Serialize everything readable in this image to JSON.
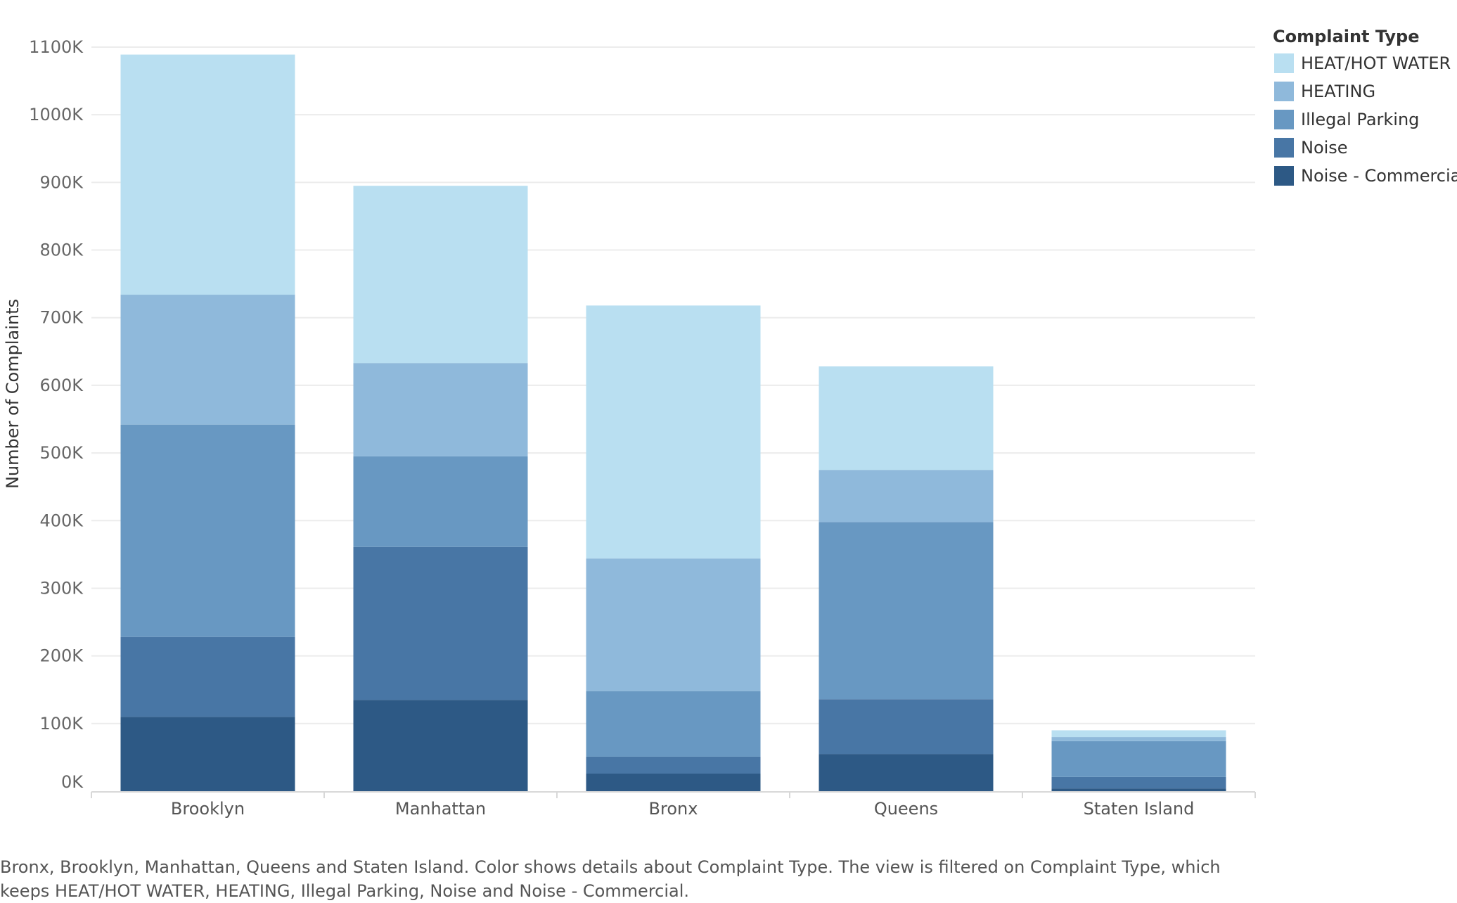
{
  "chart_data": {
    "type": "bar",
    "stacked": true,
    "categories": [
      "Brooklyn",
      "Manhattan",
      "Bronx",
      "Queens",
      "Staten Island"
    ],
    "series": [
      {
        "name": "Noise - Commercial",
        "color": "#2d5985",
        "values": [
          110000,
          135000,
          26000,
          55000,
          4000
        ]
      },
      {
        "name": "Noise",
        "color": "#4876a5",
        "values": [
          118000,
          226000,
          25000,
          81000,
          17000
        ]
      },
      {
        "name": "Illegal Parking",
        "color": "#6898c2",
        "values": [
          314000,
          134000,
          97000,
          262000,
          53000
        ]
      },
      {
        "name": "HEATING",
        "color": "#8fb9db",
        "values": [
          192000,
          138000,
          196000,
          77000,
          6000
        ]
      },
      {
        "name": "HEAT/HOT WATER",
        "color": "#b9dff1",
        "values": [
          355000,
          262000,
          374000,
          153000,
          10000
        ]
      }
    ],
    "ylabel": "Number of Complaints",
    "xlabel": "",
    "ylim": [
      0,
      1100000
    ],
    "yticks": [
      0,
      100000,
      200000,
      300000,
      400000,
      500000,
      600000,
      700000,
      800000,
      900000,
      1000000,
      1100000
    ],
    "ytick_labels": [
      "0K",
      "100K",
      "200K",
      "300K",
      "400K",
      "500K",
      "600K",
      "700K",
      "800K",
      "900K",
      "1000K",
      "1100K"
    ],
    "legend": {
      "title": "Complaint Type",
      "position": "top-right",
      "entries": [
        "HEAT/HOT WATER",
        "HEATING",
        "Illegal Parking",
        "Noise",
        "Noise - Commercial"
      ]
    },
    "grid": true
  },
  "caption": "Bronx, Brooklyn, Manhattan, Queens and Staten Island.  Color shows details about Complaint Type. The view is filtered on Complaint Type, which keeps HEAT/HOT WATER, HEATING, Illegal Parking, Noise and Noise - Commercial."
}
